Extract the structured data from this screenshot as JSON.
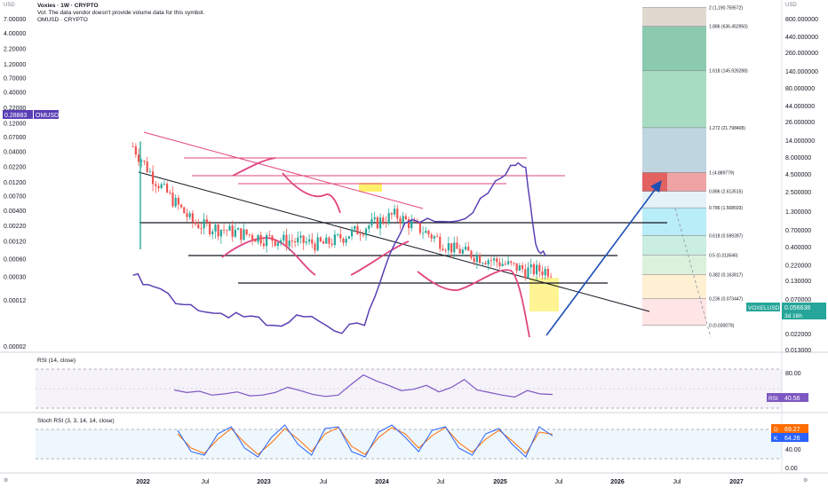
{
  "header": {
    "title": "Voxies · 1W · CRYPTO",
    "volume_note": "Vol: The data vendor doesn't provide volume data for this symbol.",
    "compare_symbol": "OMUSD · CRYPTO",
    "currency_left": "USD",
    "currency_right": "USD"
  },
  "colors": {
    "candle_up": "#26a69a",
    "candle_down": "#ef5350",
    "om_line": "#5b3fb5",
    "pink": "#e0457f",
    "trend": "#131722",
    "arrow": "#1e4fb5",
    "rsi": "#7e57c2",
    "stoch_k": "#2962ff",
    "stoch_d": "#ff6d00"
  },
  "chart_data": [
    {
      "type": "candlestick",
      "title": "Voxies · 1W · CRYPTO",
      "log_scale": true,
      "x_labels": [
        "2022",
        "Jul",
        "2023",
        "Jul",
        "2024",
        "Jul",
        "2025",
        "Jul",
        "2026",
        "Jul",
        "2027"
      ],
      "left_axis_ticks": [
        "7.00000",
        "4.00000",
        "2.20000",
        "1.20000",
        "0.70000",
        "0.40000",
        "0.22000",
        "0.12000",
        "0.07000",
        "0.04000",
        "0.02200",
        "0.01200",
        "0.00700",
        "0.00400",
        "0.00220",
        "0.00120",
        "0.00060",
        "0.00030",
        "0.00012",
        "0.00002"
      ],
      "right_axis_ticks": [
        "800.000000",
        "440.000000",
        "260.000000",
        "140.000000",
        "80.000000",
        "44.000000",
        "26.000000",
        "14.000000",
        "8.000000",
        "4.500000",
        "2.500000",
        "1.300000",
        "0.700000",
        "0.400000",
        "0.220000",
        "0.130000",
        "0.070000",
        "0.039000",
        "0.022000",
        "0.013000"
      ],
      "series": [
        {
          "name": "VOXELUSD",
          "last_value_label": "0.056638",
          "countdown": "3d 16h",
          "ohlc_sample": [
            {
              "x": "2021-12",
              "o": 0.045,
              "h": 0.07,
              "l": 0.004,
              "c": 0.05
            },
            {
              "x": "2022-02",
              "o": 0.03,
              "h": 0.035,
              "l": 0.012,
              "c": 0.015
            },
            {
              "x": "2022-06",
              "o": 0.004,
              "h": 0.006,
              "l": 0.002,
              "c": 0.0025
            },
            {
              "x": "2023-01",
              "o": 0.002,
              "h": 0.0025,
              "l": 0.0012,
              "c": 0.0014
            },
            {
              "x": "2023-07",
              "o": 0.0012,
              "h": 0.0015,
              "l": 0.0009,
              "c": 0.0011
            },
            {
              "x": "2024-02",
              "o": 0.0025,
              "h": 0.004,
              "l": 0.002,
              "c": 0.0035
            },
            {
              "x": "2024-08",
              "o": 0.0012,
              "h": 0.0016,
              "l": 0.0007,
              "c": 0.0009
            },
            {
              "x": "2025-03",
              "o": 0.0003,
              "h": 0.0012,
              "l": 8e-05,
              "c": 0.0004
            }
          ]
        },
        {
          "name": "OMUSD",
          "last_value_label": "0.28883",
          "points": [
            {
              "x": "2021-12",
              "y": 0.16
            },
            {
              "x": "2022-02",
              "y": 0.11
            },
            {
              "x": "2022-05",
              "y": 0.06
            },
            {
              "x": "2022-08",
              "y": 0.045
            },
            {
              "x": "2022-11",
              "y": 0.04
            },
            {
              "x": "2023-02",
              "y": 0.03
            },
            {
              "x": "2023-05",
              "y": 0.04
            },
            {
              "x": "2023-08",
              "y": 0.025
            },
            {
              "x": "2023-11",
              "y": 0.03
            },
            {
              "x": "2024-01",
              "y": 0.2
            },
            {
              "x": "2024-03",
              "y": 0.9
            },
            {
              "x": "2024-06",
              "y": 0.95
            },
            {
              "x": "2024-09",
              "y": 1.05
            },
            {
              "x": "2024-12",
              "y": 3.7
            },
            {
              "x": "2025-02",
              "y": 6.2
            },
            {
              "x": "2025-03",
              "y": 5.8
            },
            {
              "x": "2025-04",
              "y": 0.45
            },
            {
              "x": "2025-05",
              "y": 0.3
            }
          ]
        }
      ]
    },
    {
      "type": "line",
      "title": "RSI (14, close)",
      "value_label": "40.56",
      "axis_ticks": [
        "80.00",
        "40.00"
      ],
      "values": [
        48,
        44,
        46,
        40,
        42,
        45,
        39,
        40,
        44,
        52,
        47,
        41,
        38,
        40,
        56,
        71,
        62,
        55,
        47,
        49,
        55,
        45,
        52,
        64,
        48,
        44,
        40,
        37,
        47,
        42,
        41
      ]
    },
    {
      "type": "line",
      "title": "Stoch RSI (3, 3, 14, 14, close)",
      "axis_ticks": [
        "40.00",
        "0.00"
      ],
      "series": [
        {
          "name": "D",
          "label": "69.27"
        },
        {
          "name": "K",
          "label": "64.26"
        }
      ],
      "k_values": [
        80,
        20,
        10,
        70,
        90,
        30,
        5,
        60,
        95,
        40,
        10,
        85,
        90,
        20,
        5,
        75,
        95,
        60,
        20,
        80,
        90,
        30,
        10,
        70,
        85,
        40,
        5,
        90,
        64
      ],
      "d_values": [
        70,
        30,
        15,
        55,
        85,
        45,
        12,
        45,
        85,
        55,
        20,
        70,
        88,
        35,
        12,
        60,
        88,
        70,
        30,
        65,
        88,
        45,
        18,
        55,
        80,
        50,
        15,
        75,
        69
      ]
    },
    {
      "type": "fibonacci_levels",
      "levels": [
        {
          "ratio": "2",
          "value": "1,190.759572",
          "label": "2 (1,190.759572)"
        },
        {
          "ratio": "1.886",
          "value": "636.452950",
          "label": "1.886 (636.452950)"
        },
        {
          "ratio": "1.618",
          "value": "145.926288",
          "label": "1.618 (145.926288)"
        },
        {
          "ratio": "1.272",
          "value": "21.798408",
          "label": "1.272 (21.798408)"
        },
        {
          "ratio": "1",
          "value": "4.889779",
          "label": "1 (4.889779)"
        },
        {
          "ratio": "0.886",
          "value": "2.613515",
          "label": "0.886 (2.613515)"
        },
        {
          "ratio": "0.786",
          "value": "1.508593",
          "label": "0.786 (1.508593)"
        },
        {
          "ratio": "0.618",
          "value": "0.599287",
          "label": "0.618 (0.599287)"
        },
        {
          "ratio": "0.5",
          "value": "0.313546",
          "label": "0.5 (0.313546)"
        },
        {
          "ratio": "0.382",
          "value": "0.163817",
          "label": "0.382 (0.163817)"
        },
        {
          "ratio": "0.236",
          "value": "0.073447",
          "label": "0.236 (0.073447)"
        },
        {
          "ratio": "0",
          "value": "0.030079",
          "label": "0 (0.030079)"
        }
      ]
    }
  ]
}
